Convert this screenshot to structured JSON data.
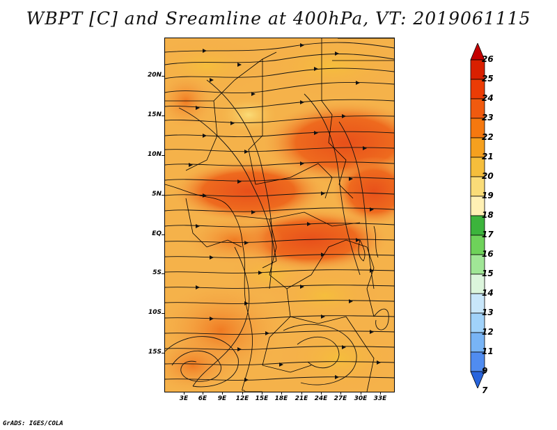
{
  "title": "WBPT [C] and Sreamline at 400hPa, VT: 2019061115",
  "footer": "GrADS: IGES/COLA",
  "lat_labels": [
    "20N",
    "15N",
    "10N",
    "5N",
    "EQ",
    "5S",
    "10S",
    "15S"
  ],
  "lon_labels": [
    "3E",
    "6E",
    "9E",
    "12E",
    "15E",
    "18E",
    "21E",
    "24E",
    "27E",
    "30E",
    "33E"
  ],
  "colorbar": {
    "labels": [
      "26",
      "25",
      "24",
      "23",
      "22",
      "21",
      "20",
      "19",
      "18",
      "17",
      "16",
      "15",
      "14",
      "13",
      "12",
      "11",
      "9",
      "7"
    ],
    "colors": [
      "#c40000",
      "#d92000",
      "#eb3c05",
      "#f05a0f",
      "#f5780f",
      "#f5a01e",
      "#f5be3c",
      "#fadc78",
      "#fff0b4",
      "#3cb43c",
      "#6ed25a",
      "#a0e696",
      "#dcf5dc",
      "#c8e6fa",
      "#a0d2fa",
      "#78b4f5",
      "#508cf0",
      "#2864dc"
    ]
  }
}
